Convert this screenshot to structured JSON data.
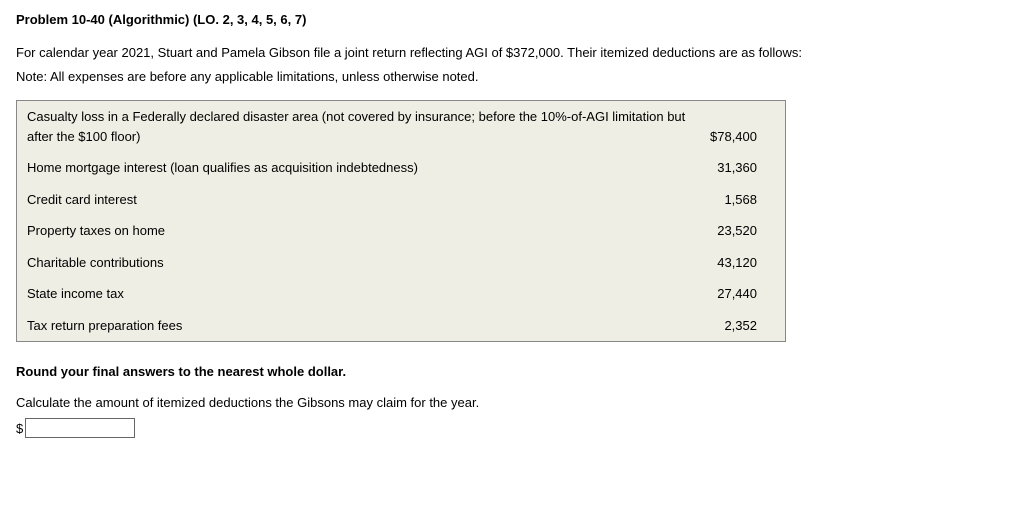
{
  "title": "Problem 10-40 (Algorithmic) (LO. 2, 3, 4, 5, 6, 7)",
  "intro": "For calendar year 2021, Stuart and Pamela Gibson file a joint return reflecting AGI of $372,000. Their itemized deductions are as follows:",
  "note": "Note: All expenses are before any applicable limitations, unless otherwise noted.",
  "table": {
    "background_color": "#eeeee4",
    "border_color": "#888888",
    "rows": [
      {
        "label": "Casualty loss in a Federally declared disaster area (not covered by insurance; before the 10%-of-AGI limitation but after the $100 floor)",
        "amount": "$78,400"
      },
      {
        "label": "Home mortgage interest (loan qualifies as acquisition indebtedness)",
        "amount": "31,360"
      },
      {
        "label": "Credit card interest",
        "amount": "1,568"
      },
      {
        "label": "Property taxes on home",
        "amount": "23,520"
      },
      {
        "label": "Charitable contributions",
        "amount": "43,120"
      },
      {
        "label": "State income tax",
        "amount": "27,440"
      },
      {
        "label": "Tax return preparation fees",
        "amount": "2,352"
      }
    ]
  },
  "round_note": "Round your final answers to the nearest whole dollar.",
  "calc_prompt": "Calculate the amount of itemized deductions the Gibsons may claim for the year.",
  "currency_symbol": "$",
  "answer_value": ""
}
